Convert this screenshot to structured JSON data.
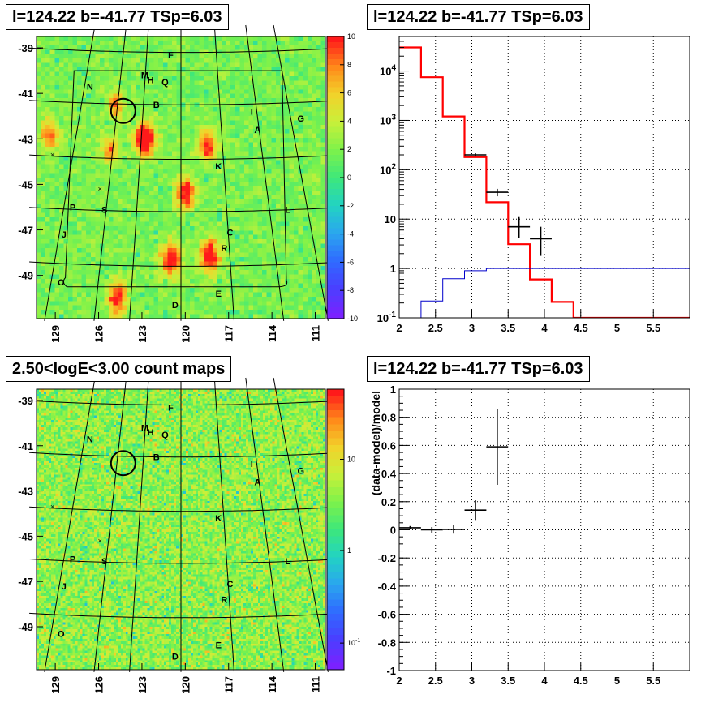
{
  "panels": [
    {
      "title": "l=124.22 b=-41.77 TSp=6.03"
    },
    {
      "title": "l=124.22 b=-41.77 TSp=6.03"
    },
    {
      "title": "2.50<logE<3.00 count maps"
    },
    {
      "title": "l=124.22 b=-41.77 TSp=6.03"
    }
  ],
  "chart_data": [
    {
      "type": "heatmap",
      "title": "l=124.22 b=-41.77 TSp=6.03",
      "x_ticks": [
        "129",
        "126",
        "123",
        "120",
        "117",
        "114",
        "111"
      ],
      "y_ticks": [
        "-39",
        "-41",
        "-43",
        "-45",
        "-47",
        "-49"
      ],
      "colorbar": {
        "scale": "linear",
        "range": [
          -10,
          10
        ],
        "ticks": [
          "10",
          "8",
          "6",
          "4",
          "2",
          "0",
          "-2",
          "-4",
          "-6",
          "-8",
          "-10"
        ]
      },
      "sources": [
        {
          "label": "F",
          "l": 121.0,
          "b": -39.3
        },
        {
          "label": "M",
          "l": 122.8,
          "b": -40.2
        },
        {
          "label": "H",
          "l": 122.4,
          "b": -40.4
        },
        {
          "label": "Q",
          "l": 121.4,
          "b": -40.5
        },
        {
          "label": "N",
          "l": 126.6,
          "b": -40.7
        },
        {
          "label": "B",
          "l": 122.0,
          "b": -41.5
        },
        {
          "label": "I",
          "l": 115.4,
          "b": -41.8
        },
        {
          "label": "G",
          "l": 112.0,
          "b": -42.1
        },
        {
          "label": "A",
          "l": 115.0,
          "b": -42.6
        },
        {
          "label": "K",
          "l": 117.7,
          "b": -44.2
        },
        {
          "label": "P",
          "l": 127.8,
          "b": -46.0
        },
        {
          "label": "S",
          "l": 125.6,
          "b": -46.1
        },
        {
          "label": "L",
          "l": 112.9,
          "b": -46.1
        },
        {
          "label": "J",
          "l": 128.4,
          "b": -47.2
        },
        {
          "label": "C",
          "l": 116.9,
          "b": -47.1
        },
        {
          "label": "R",
          "l": 117.3,
          "b": -47.8
        },
        {
          "label": "O",
          "l": 128.6,
          "b": -49.3
        },
        {
          "label": "E",
          "l": 117.7,
          "b": -49.8
        },
        {
          "label": "D",
          "l": 120.7,
          "b": -50.3
        }
      ],
      "circle": {
        "l": 124.3,
        "b": -41.77
      }
    },
    {
      "type": "line",
      "title": "l=124.22 b=-41.77 TSp=6.03",
      "xlim": [
        2,
        6
      ],
      "ylim": [
        0.1,
        50000
      ],
      "y_scale": "log",
      "x_ticks": [
        "2",
        "2.5",
        "3",
        "3.5",
        "4",
        "4.5",
        "5",
        "5.5"
      ],
      "y_ticks": [
        "10^-1",
        "1",
        "10",
        "10^2",
        "10^3",
        "10^4"
      ],
      "grid": true,
      "series": [
        {
          "color": "#ff0000",
          "bin_edges": [
            2.0,
            2.3,
            2.6,
            2.9,
            3.2,
            3.5,
            3.8,
            4.1,
            4.4,
            4.7,
            5.0,
            5.3,
            5.6,
            5.9,
            6.2
          ],
          "values": [
            30000,
            7500,
            1200,
            180,
            22,
            3.1,
            0.6,
            0.21,
            0.1,
            0.1,
            0.1,
            0.1,
            0.1,
            0.1
          ]
        },
        {
          "color": "#0000cc",
          "bin_edges": [
            2.0,
            2.3,
            2.6,
            2.9,
            3.2,
            3.5,
            3.8,
            4.1,
            4.4,
            4.7,
            5.0,
            5.3,
            5.6,
            5.9,
            6.2
          ],
          "values": [
            0.05,
            0.22,
            0.62,
            0.9,
            1.0,
            1.0,
            1.0,
            1.0,
            1.0,
            1.0,
            1.0,
            1.0,
            1.0,
            1.0
          ]
        },
        {
          "color": "#000000",
          "points": [
            {
              "x": 3.05,
              "xerr": 0.15,
              "y": 200,
              "ylo": 185,
              "yhi": 215
            },
            {
              "x": 3.35,
              "xerr": 0.15,
              "y": 35,
              "ylo": 29,
              "yhi": 41
            },
            {
              "x": 3.65,
              "xerr": 0.15,
              "y": 7,
              "ylo": 4.2,
              "yhi": 11
            },
            {
              "x": 3.95,
              "xerr": 0.15,
              "y": 4,
              "ylo": 1.8,
              "yhi": 7
            }
          ]
        }
      ]
    },
    {
      "type": "heatmap",
      "title": "2.50<logE<3.00 count maps",
      "x_ticks": [
        "129",
        "126",
        "123",
        "120",
        "117",
        "114",
        "111"
      ],
      "y_ticks": [
        "-39",
        "-41",
        "-43",
        "-45",
        "-47",
        "-49"
      ],
      "colorbar": {
        "scale": "log",
        "ticks": [
          "10",
          "1",
          "10^-1"
        ]
      }
    },
    {
      "type": "scatter",
      "title": "l=124.22 b=-41.77 TSp=6.03",
      "xlim": [
        2,
        6
      ],
      "ylim": [
        -1,
        1
      ],
      "ylabel": "(data-model)/model",
      "x_ticks": [
        "2",
        "2.5",
        "3",
        "3.5",
        "4",
        "4.5",
        "5",
        "5.5"
      ],
      "y_ticks": [
        "1",
        "0.8",
        "0.6",
        "0.4",
        "0.2",
        "0",
        "-0.2",
        "-0.4",
        "-0.6",
        "-0.8",
        "-1"
      ],
      "grid": true,
      "points": [
        {
          "x": 2.15,
          "xerr": 0.15,
          "y": 0.015,
          "yerr": 0.012
        },
        {
          "x": 2.45,
          "xerr": 0.15,
          "y": 0.0,
          "yerr": 0.02
        },
        {
          "x": 2.75,
          "xerr": 0.15,
          "y": 0.003,
          "yerr": 0.03
        },
        {
          "x": 3.05,
          "xerr": 0.15,
          "y": 0.14,
          "yerr": 0.07
        },
        {
          "x": 3.35,
          "xerr": 0.15,
          "y": 0.59,
          "yerr": 0.27
        }
      ]
    }
  ]
}
